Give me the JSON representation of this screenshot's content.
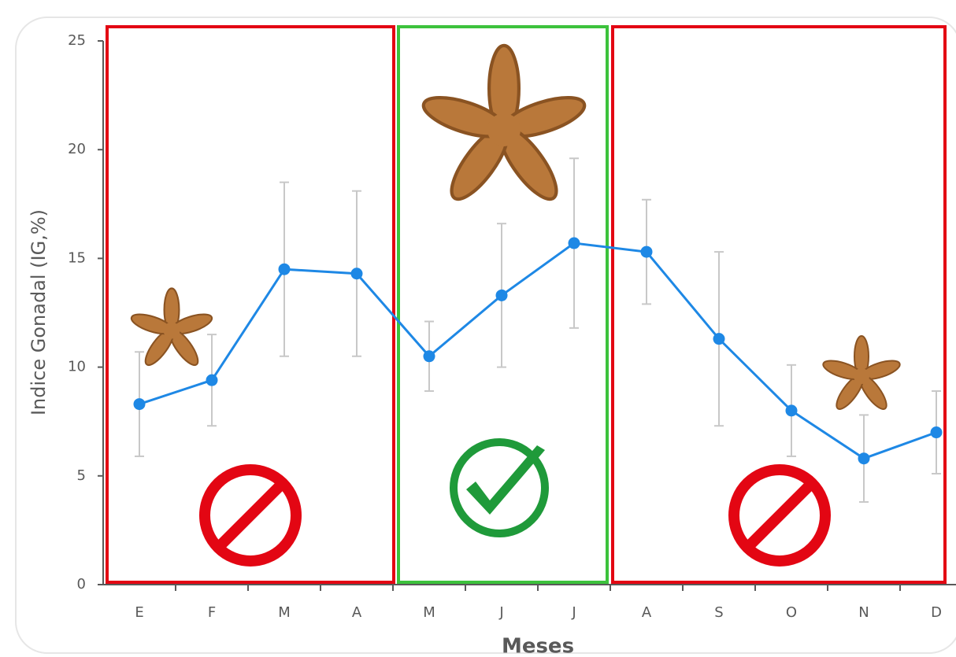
{
  "chart_data": {
    "type": "line",
    "x_label": "Meses",
    "y_label": "Indice Gonadal (IG,%)",
    "categories": [
      "E",
      "F",
      "M",
      "A",
      "M",
      "J",
      "J",
      "A",
      "S",
      "O",
      "N",
      "D"
    ],
    "values": [
      8.3,
      9.4,
      14.5,
      14.3,
      10.5,
      13.3,
      15.7,
      15.3,
      11.3,
      8.0,
      5.8,
      7.0
    ],
    "errors": [
      2.4,
      2.1,
      4.0,
      3.8,
      1.6,
      3.3,
      3.9,
      2.4,
      4.0,
      2.1,
      2.0,
      1.9
    ],
    "color": "#1e88e5",
    "ylim": [
      0,
      25
    ],
    "yticks": [
      0,
      5,
      10,
      15,
      20,
      25
    ]
  }
}
